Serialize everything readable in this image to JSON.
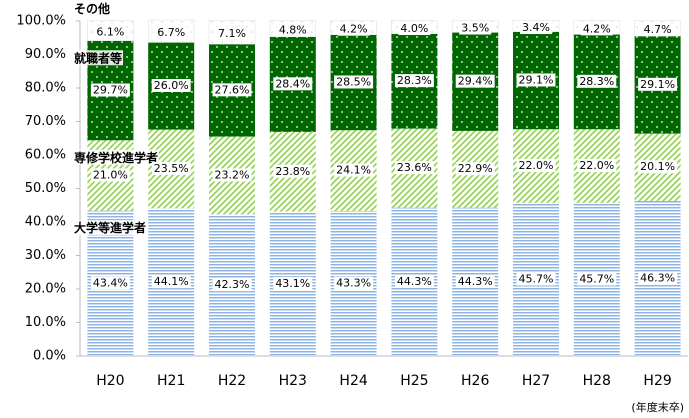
{
  "chart_data": {
    "type": "stacked_bar",
    "categories": [
      "H20",
      "H21",
      "H22",
      "H23",
      "H24",
      "H25",
      "H26",
      "H27",
      "H28",
      "H29"
    ],
    "x_label": "(年度末卒)",
    "ylim": [
      0,
      100
    ],
    "yticks": [
      {
        "value": 0,
        "label": "0.0%"
      },
      {
        "value": 10,
        "label": "10.0%"
      },
      {
        "value": 20,
        "label": "20.0%"
      },
      {
        "value": 30,
        "label": "30.0%"
      },
      {
        "value": 40,
        "label": "40.0%"
      },
      {
        "value": 50,
        "label": "50.0%"
      },
      {
        "value": 60,
        "label": "60.0%"
      },
      {
        "value": 70,
        "label": "70.0%"
      },
      {
        "value": 80,
        "label": "80.0%"
      },
      {
        "value": 90,
        "label": "90.0%"
      },
      {
        "value": 100,
        "label": "100.0%"
      }
    ],
    "series": [
      {
        "name": "大学等進学者",
        "color": "#8eb4e3",
        "values": [
          43.4,
          44.1,
          42.3,
          43.1,
          43.3,
          44.3,
          44.3,
          45.7,
          45.7,
          46.3
        ],
        "value_labels": [
          "43.4%",
          "44.1%",
          "42.3%",
          "43.1%",
          "43.3%",
          "44.3%",
          "44.3%",
          "45.7%",
          "45.7%",
          "46.3%"
        ]
      },
      {
        "name": "専修学校進学者",
        "color": "#92d050",
        "values": [
          21.0,
          23.5,
          23.2,
          23.8,
          24.1,
          23.6,
          22.9,
          22.0,
          22.0,
          20.1
        ],
        "value_labels": [
          "21.0%",
          "23.5%",
          "23.2%",
          "23.8%",
          "24.1%",
          "23.6%",
          "22.9%",
          "22.0%",
          "22.0%",
          "20.1%"
        ]
      },
      {
        "name": "就職者等",
        "color": "#006600",
        "values": [
          29.7,
          26.0,
          27.6,
          28.4,
          28.5,
          28.3,
          29.4,
          29.1,
          28.3,
          29.1
        ],
        "value_labels": [
          "29.7%",
          "26.0%",
          "27.6%",
          "28.4%",
          "28.5%",
          "28.3%",
          "29.4%",
          "29.1%",
          "28.3%",
          "29.1%"
        ]
      },
      {
        "name": "その他",
        "color": "#c8d8c8",
        "values": [
          6.1,
          6.7,
          7.1,
          4.8,
          4.2,
          4.0,
          3.5,
          3.4,
          4.2,
          4.7
        ],
        "value_labels": [
          "6.1%",
          "6.7%",
          "7.1%",
          "4.8%",
          "4.2%",
          "4.0%",
          "3.5%",
          "3.4%",
          "4.2%",
          "4.7%"
        ]
      }
    ]
  }
}
